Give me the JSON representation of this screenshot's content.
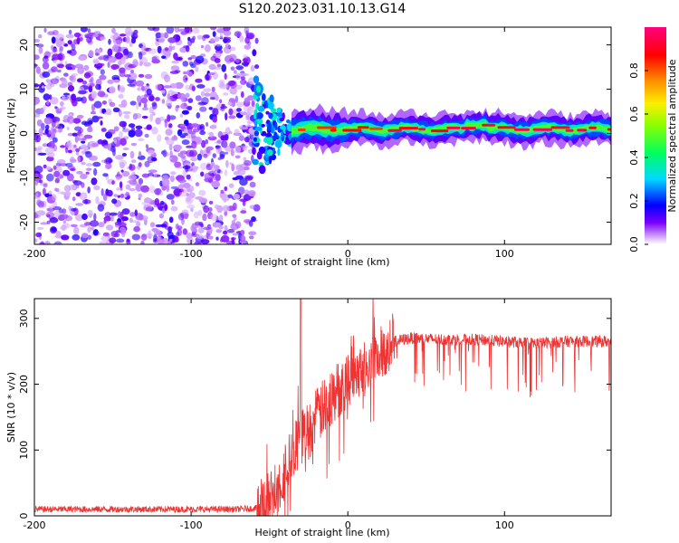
{
  "title": "S120.2023.031.10.13.G14",
  "chart_data": [
    {
      "type": "heatmap",
      "xlabel": "Height of straight line (km)",
      "ylabel": "Frequency (Hz)",
      "xlim": [
        -200,
        168
      ],
      "ylim": [
        -25,
        24
      ],
      "xticks": [
        -200,
        -100,
        0,
        100
      ],
      "yticks": [
        20,
        10,
        0,
        -10,
        -20
      ],
      "regions": [
        {
          "name": "diffuse noise",
          "x_range": [
            -200,
            -60
          ],
          "y_range": [
            -25,
            24
          ],
          "amplitude_range": [
            0.05,
            0.2
          ]
        },
        {
          "name": "transition",
          "x_range": [
            -60,
            -35
          ],
          "y_range": [
            -10,
            12
          ],
          "amplitude_range": [
            0.1,
            0.4
          ]
        },
        {
          "name": "carrier line",
          "x_range": [
            -35,
            168
          ],
          "center_frequency_hz": 1,
          "amplitude_range": [
            0.3,
            1.0
          ]
        }
      ],
      "colorbar": {
        "label": "Normalized spectral amplitude",
        "ticks": [
          0.0,
          0.2,
          0.4,
          0.6,
          0.8
        ],
        "colors": [
          "#ffffff",
          "#cc99ff",
          "#7b00ff",
          "#0000ff",
          "#00d8ff",
          "#00ff60",
          "#8cff00",
          "#ffee00",
          "#ff9000",
          "#ff0000",
          "#ff0080"
        ]
      }
    },
    {
      "type": "line",
      "xlabel": "Height of straight line (km)",
      "ylabel": "SNR (10 * v/v)",
      "xlim": [
        -200,
        168
      ],
      "ylim": [
        0,
        330
      ],
      "xticks": [
        -200,
        -100,
        0,
        100
      ],
      "yticks": [
        0,
        100,
        200,
        300
      ],
      "color": "#ee3333",
      "series": [
        {
          "name": "SNR",
          "x": [
            -200,
            -150,
            -100,
            -70,
            -55,
            -50,
            -45,
            -40,
            -35,
            -30,
            -25,
            -20,
            -15,
            -10,
            -5,
            0,
            5,
            10,
            15,
            20,
            25,
            30,
            40,
            60,
            80,
            100,
            120,
            140,
            168
          ],
          "y": [
            10,
            10,
            10,
            10,
            12,
            25,
            45,
            70,
            95,
            115,
            130,
            150,
            165,
            180,
            195,
            210,
            220,
            230,
            240,
            250,
            258,
            265,
            270,
            268,
            268,
            265,
            262,
            265,
            265
          ]
        }
      ]
    }
  ]
}
